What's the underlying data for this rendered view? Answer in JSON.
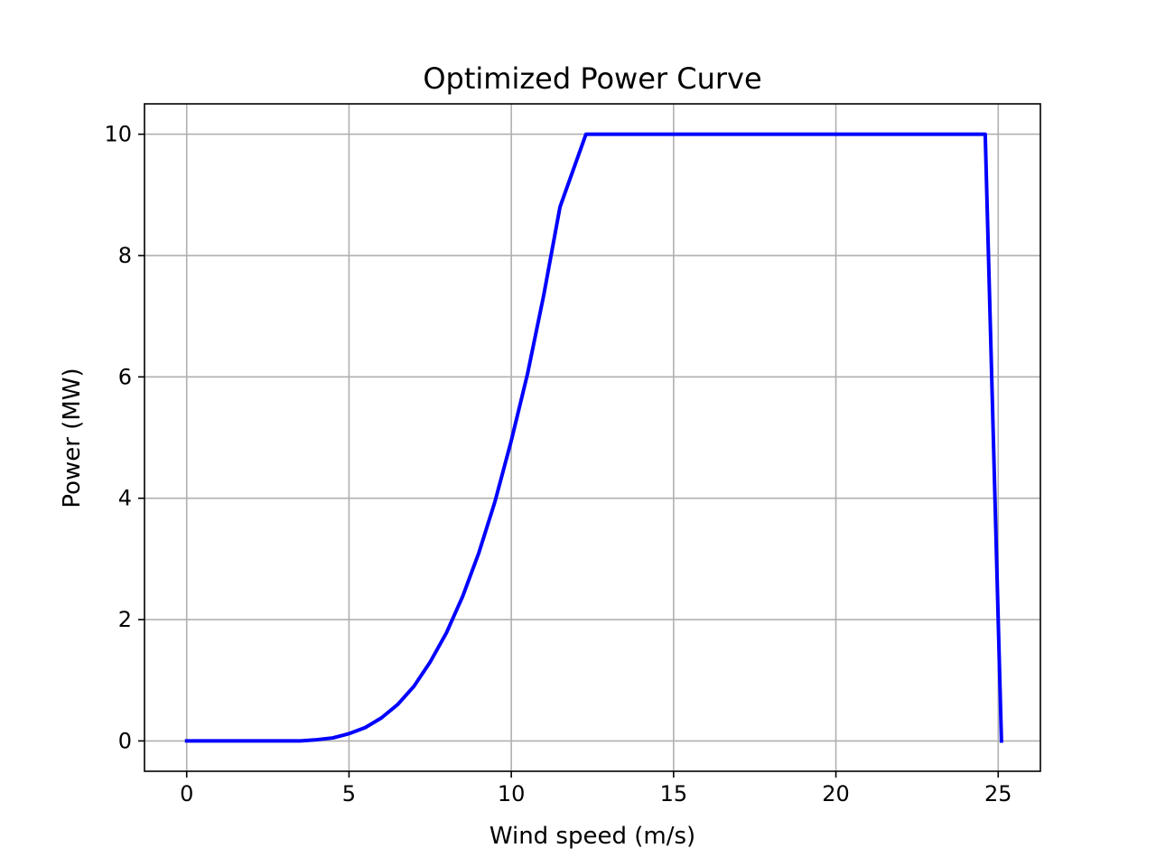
{
  "chart_data": {
    "type": "line",
    "title": "Optimized Power Curve",
    "xlabel": "Wind speed (m/s)",
    "ylabel": "Power (MW)",
    "xlim": [
      -1.3,
      26.3
    ],
    "ylim": [
      -0.5,
      10.5
    ],
    "xticks": [
      0,
      5,
      10,
      15,
      20,
      25
    ],
    "yticks": [
      0,
      2,
      4,
      6,
      8,
      10
    ],
    "xtick_labels": [
      "0",
      "5",
      "10",
      "15",
      "20",
      "25"
    ],
    "ytick_labels": [
      "0",
      "2",
      "4",
      "6",
      "8",
      "10"
    ],
    "grid": true,
    "series": [
      {
        "color": "#0000ff",
        "x": [
          0,
          0.5,
          1,
          1.5,
          2,
          2.5,
          3,
          3.5,
          4,
          4.5,
          5,
          5.5,
          6,
          6.5,
          7,
          7.5,
          8,
          8.5,
          9,
          9.5,
          10,
          10.5,
          11,
          11.5,
          12,
          12.3,
          12.5,
          13,
          14,
          15,
          16,
          17,
          18,
          19,
          20,
          21,
          22,
          23,
          24,
          24.6,
          25.1
        ],
        "y": [
          0,
          0,
          0,
          0,
          0,
          0,
          0,
          0,
          0.02,
          0.05,
          0.12,
          0.22,
          0.38,
          0.6,
          0.9,
          1.3,
          1.78,
          2.38,
          3.1,
          3.95,
          4.95,
          6.05,
          7.35,
          8.8,
          9.55,
          10,
          10,
          10,
          10,
          10,
          10,
          10,
          10,
          10,
          10,
          10,
          10,
          10,
          10,
          10,
          0
        ]
      }
    ]
  }
}
